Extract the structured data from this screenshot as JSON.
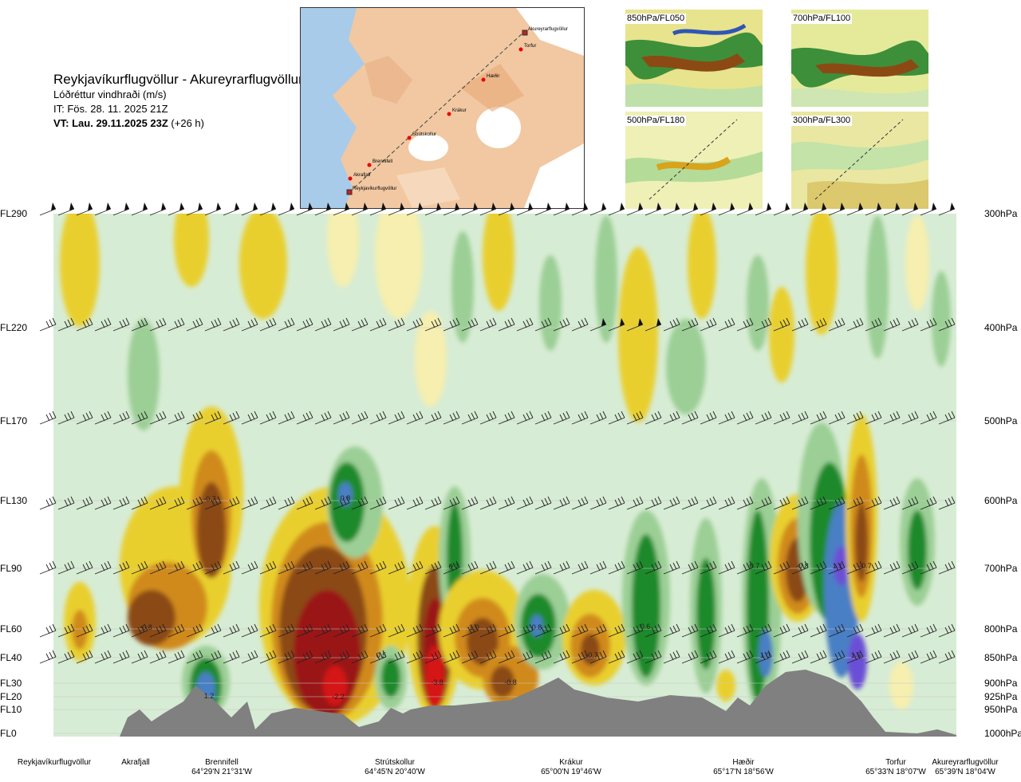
{
  "title": {
    "route": "Reykjavíkurflugvöllur - Akureyrarflugvöllur",
    "field": "Lóðréttur vindhraði (m/s)",
    "it": "IT: Fös. 28. 11. 2025 21Z",
    "vt_bold": "VT: Lau. 29.11.2025 23Z",
    "vt_rest": " (+26 h)"
  },
  "map": {
    "points": [
      {
        "name": "Akureyrarflugvöllur",
        "type": "airport"
      },
      {
        "name": "Torfur",
        "type": "point"
      },
      {
        "name": "Hæðir",
        "type": "point"
      },
      {
        "name": "Krákur",
        "type": "point"
      },
      {
        "name": "Strútskollur",
        "type": "point"
      },
      {
        "name": "Brennifell",
        "type": "point"
      },
      {
        "name": "Akrafjall",
        "type": "point"
      },
      {
        "name": "Reykjavíkurflugvöllur",
        "type": "airport"
      }
    ]
  },
  "thumbnails": [
    {
      "label": "850hPa/FL050"
    },
    {
      "label": "700hPa/FL100"
    },
    {
      "label": "500hPa/FL180"
    },
    {
      "label": "300hPa/FL300"
    }
  ],
  "chart_data": {
    "type": "heatmap",
    "title": "Lóðréttur vindhraði (m/s)",
    "y_levels": [
      {
        "fl": "FL290",
        "hpa": "300hPa"
      },
      {
        "fl": "FL220",
        "hpa": "400hPa"
      },
      {
        "fl": "FL170",
        "hpa": "500hPa"
      },
      {
        "fl": "FL130",
        "hpa": "600hPa"
      },
      {
        "fl": "FL90",
        "hpa": "700hPa"
      },
      {
        "fl": "FL60",
        "hpa": "800hPa"
      },
      {
        "fl": "FL40",
        "hpa": "850hPa"
      },
      {
        "fl": "FL30",
        "hpa": "900hPa"
      },
      {
        "fl": "FL20",
        "hpa": "925hPa"
      },
      {
        "fl": "FL10",
        "hpa": "950hPa"
      },
      {
        "fl": "FL0",
        "hpa": "1000hPa"
      }
    ],
    "locations": [
      {
        "name": "Reykjavíkurflugvöllur",
        "coord": ""
      },
      {
        "name": "Akrafjall",
        "coord": ""
      },
      {
        "name": "Brennifell",
        "coord": "64°29'N 21°31'W"
      },
      {
        "name": "Strútskollur",
        "coord": "64°45'N 20°40'W"
      },
      {
        "name": "Krákur",
        "coord": "65°00'N 19°46'W"
      },
      {
        "name": "Hæðir",
        "coord": "65°17'N 18°56'W"
      },
      {
        "name": "Torfur",
        "coord": "65°33'N 18°07'W"
      },
      {
        "name": "Akureyrarflugvöllur",
        "coord": "65°39'N 18°04'W"
      }
    ],
    "value_labels": [
      {
        "text": "-0.7",
        "near": "Brennifell",
        "level": "FL130"
      },
      {
        "text": "0.8",
        "near": "Strútskollur",
        "level": "FL130"
      },
      {
        "text": "-0.8",
        "near": "Akrafjall",
        "level": "FL60"
      },
      {
        "text": "0.7",
        "near": "Strútskollur",
        "level": "FL90"
      },
      {
        "text": "-1.0",
        "near": "Strútskollur",
        "level": "FL60"
      },
      {
        "text": "0.8",
        "near": "Krákur",
        "level": "FL60"
      },
      {
        "text": "0.6",
        "near": "Krákur",
        "level": "FL60"
      },
      {
        "text": "-0.7",
        "near": "Krákur",
        "level": "FL40"
      },
      {
        "text": "0.5",
        "near": "Strútskollur",
        "level": "FL40"
      },
      {
        "text": "1.2",
        "near": "Brennifell",
        "level": "FL20"
      },
      {
        "text": "-2.2",
        "near": "Brennifell",
        "level": "FL20"
      },
      {
        "text": "-3.8",
        "near": "Strútskollur",
        "level": "FL30"
      },
      {
        "text": "-0.8",
        "near": "Krákur",
        "level": "FL30"
      },
      {
        "text": "0.7",
        "near": "Hæðir",
        "level": "FL90"
      },
      {
        "text": "-0.8",
        "near": "Hæðir",
        "level": "FL90"
      },
      {
        "text": "1.1",
        "near": "Torfur",
        "level": "FL90"
      },
      {
        "text": "-0.7",
        "near": "Torfur",
        "level": "FL90"
      },
      {
        "text": "1.0",
        "near": "Hæðir",
        "level": "FL40"
      },
      {
        "text": "1.5",
        "near": "Torfur",
        "level": "FL40"
      }
    ],
    "colors": {
      "up_weak": "#d7ecd4",
      "up_mid": "#9bcf95",
      "up_strong": "#1f8a2a",
      "up_very": "#4a7fc4",
      "up_max": "#6a4fd6",
      "down_weak": "#f6efaf",
      "down_mid": "#e9cf2e",
      "down_strong": "#d08a1a",
      "down_very": "#8b4a14",
      "down_max": "#9a1414",
      "down_extreme": "#d41414",
      "terrain": "#808080"
    }
  }
}
